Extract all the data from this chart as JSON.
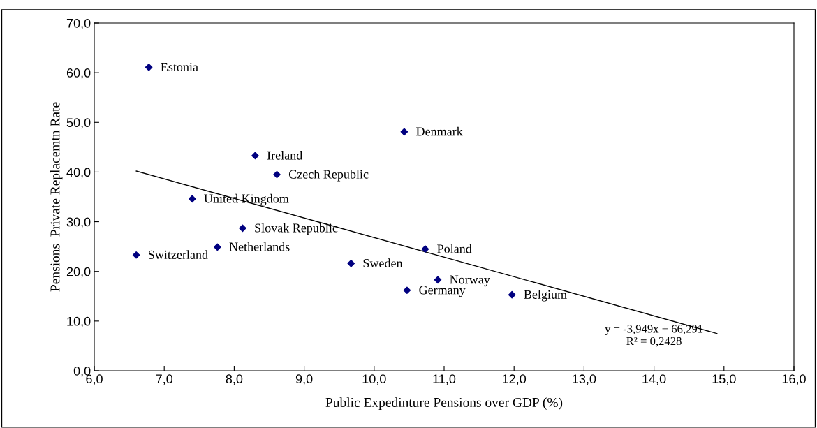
{
  "chart_data": {
    "type": "scatter",
    "xlabel": "Public Expedinture Pensions over GDP (%)",
    "ylabel": "Pensions  Private Replacemtn Rate",
    "xlim": [
      6,
      16
    ],
    "ylim": [
      0,
      70
    ],
    "xticks": [
      {
        "value": 6,
        "label": "6,0"
      },
      {
        "value": 7,
        "label": "7,0"
      },
      {
        "value": 8,
        "label": "8,0"
      },
      {
        "value": 9,
        "label": "9,0"
      },
      {
        "value": 10,
        "label": "10,0"
      },
      {
        "value": 11,
        "label": "11,0"
      },
      {
        "value": 12,
        "label": "12,0"
      },
      {
        "value": 13,
        "label": "13,0"
      },
      {
        "value": 14,
        "label": "14,0"
      },
      {
        "value": 15,
        "label": "15,0"
      },
      {
        "value": 16,
        "label": "16,0"
      }
    ],
    "yticks": [
      {
        "value": 0,
        "label": "0,0"
      },
      {
        "value": 10,
        "label": "10,0"
      },
      {
        "value": 20,
        "label": "20,0"
      },
      {
        "value": 30,
        "label": "30,0"
      },
      {
        "value": 40,
        "label": "40,0"
      },
      {
        "value": 50,
        "label": "50,0"
      },
      {
        "value": 60,
        "label": "60,0"
      },
      {
        "value": 70,
        "label": "70,0"
      }
    ],
    "grid": false,
    "series": [
      {
        "marker": "diamond",
        "color": "#000080",
        "x": [
          6.78,
          10.43,
          8.3,
          8.61,
          7.4,
          8.12,
          6.6,
          7.76,
          9.67,
          10.73,
          10.91,
          10.47,
          11.97
        ],
        "values": [
          61.1,
          48.1,
          43.3,
          39.5,
          34.6,
          28.7,
          23.3,
          24.9,
          21.6,
          24.5,
          18.3,
          16.2,
          15.3
        ]
      },
      {
        "type": "line",
        "color": "#000000",
        "x": [
          6.6,
          14.9
        ],
        "values": [
          40.2,
          7.5
        ]
      }
    ],
    "annotations": [
      {
        "text": "Estonia",
        "x": 6.78,
        "y": 61.1
      },
      {
        "text": "Denmark",
        "x": 10.43,
        "y": 48.1
      },
      {
        "text": "Ireland",
        "x": 8.3,
        "y": 43.3
      },
      {
        "text": "Czech Republic",
        "x": 8.61,
        "y": 39.5
      },
      {
        "text": "United Kingdom",
        "x": 7.4,
        "y": 34.6
      },
      {
        "text": "Slovak Republic",
        "x": 8.12,
        "y": 28.7
      },
      {
        "text": "Switzerland",
        "x": 6.6,
        "y": 23.3
      },
      {
        "text": "Netherlands",
        "x": 7.76,
        "y": 24.9
      },
      {
        "text": "Sweden",
        "x": 9.67,
        "y": 21.6
      },
      {
        "text": "Poland",
        "x": 10.73,
        "y": 24.5
      },
      {
        "text": "Norway",
        "x": 10.91,
        "y": 18.3
      },
      {
        "text": "Germany",
        "x": 10.47,
        "y": 16.2
      },
      {
        "text": "Belgium",
        "x": 11.97,
        "y": 15.3
      },
      "y = -3,949x + 66,291\nR² = 0,2428"
    ]
  }
}
